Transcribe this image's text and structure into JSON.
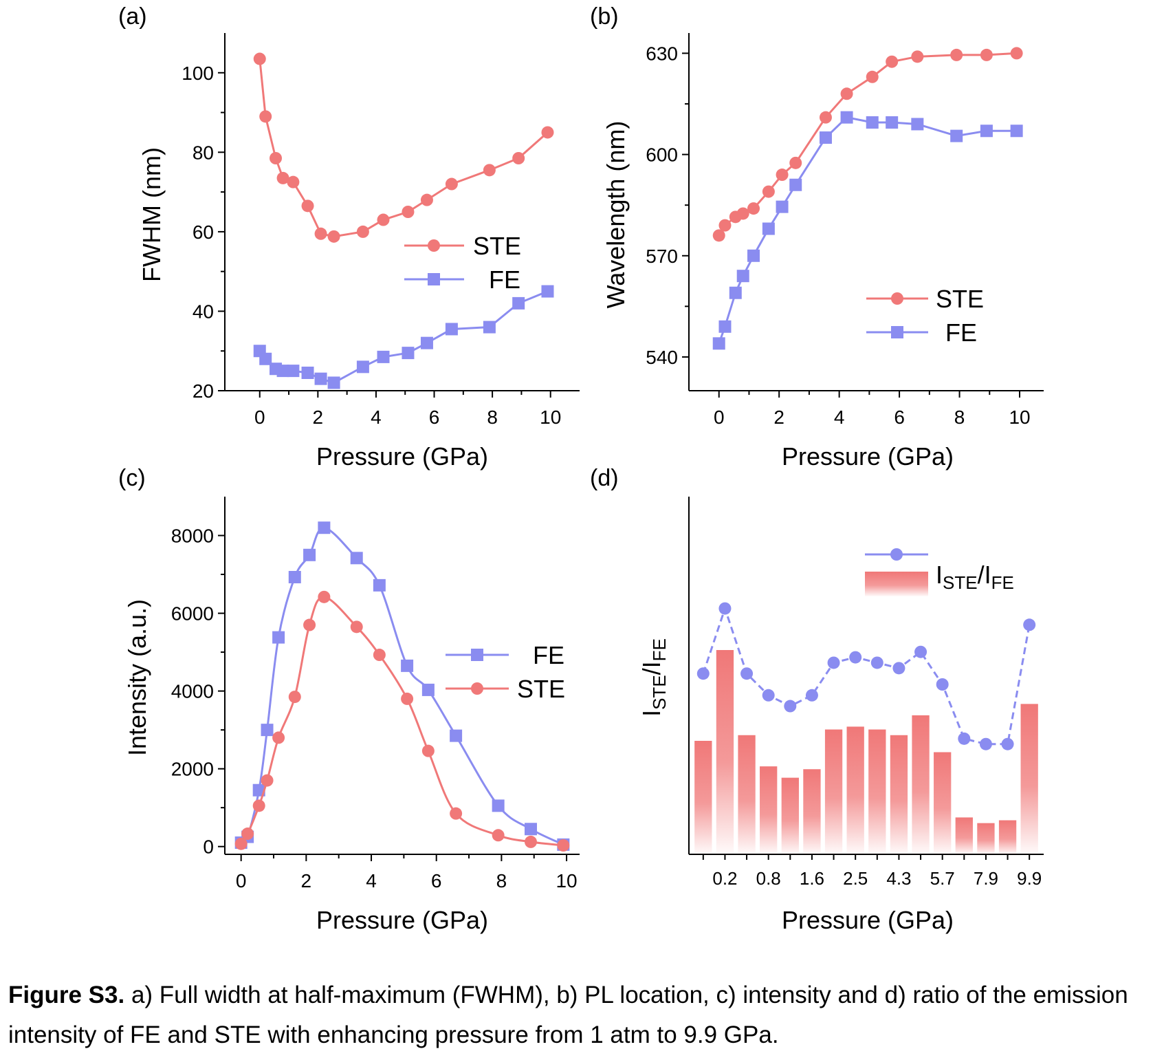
{
  "figure_caption": {
    "label": "Figure S3.",
    "text": " a) Full width at half-maximum (FWHM), b) PL location, c) intensity and d) ratio of the emission intensity of FE and STE with enhancing pressure from 1 atm to 9.9 GPa."
  },
  "colors": {
    "STE": "#f07878",
    "FE": "#8a8cf0",
    "axis": "#000000"
  },
  "chart_data": [
    {
      "panel": "(a)",
      "type": "line",
      "xlabel": "Pressure (GPa)",
      "ylabel": "FWHM (nm)",
      "xlim": [
        -1.2,
        11.0
      ],
      "ylim": [
        20,
        110
      ],
      "xticks": [
        "0",
        "2",
        "4",
        "6",
        "8",
        "10"
      ],
      "yticks": [
        "20",
        "40",
        "60",
        "80",
        "100"
      ],
      "legend": "center-right",
      "series": [
        {
          "name": "STE",
          "marker": "circle",
          "x": [
            0,
            0.2,
            0.55,
            0.8,
            1.15,
            1.65,
            2.1,
            2.55,
            3.55,
            4.25,
            5.1,
            5.75,
            6.6,
            7.9,
            8.9,
            9.9
          ],
          "y": [
            103.5,
            89,
            78.5,
            73.5,
            72.5,
            66.5,
            59.5,
            58.8,
            60,
            63,
            65,
            68,
            72,
            75.5,
            78.5,
            85
          ]
        },
        {
          "name": "FE",
          "marker": "square",
          "x": [
            0,
            0.2,
            0.55,
            0.8,
            1.15,
            1.65,
            2.1,
            2.55,
            3.55,
            4.25,
            5.1,
            5.75,
            6.6,
            7.9,
            8.9,
            9.9
          ],
          "y": [
            30,
            28,
            25.5,
            25,
            25,
            24.5,
            23,
            22,
            26,
            28.5,
            29.5,
            32,
            35.5,
            36,
            42,
            45
          ]
        }
      ]
    },
    {
      "panel": "(b)",
      "type": "line",
      "xlabel": "Pressure (GPa)",
      "ylabel": "Wavelength (nm)",
      "xlim": [
        -1.0,
        10.8
      ],
      "ylim": [
        530,
        636
      ],
      "xticks": [
        "0",
        "2",
        "4",
        "6",
        "8",
        "10"
      ],
      "yticks": [
        "540",
        "570",
        "600",
        "630"
      ],
      "legend": "lower-right",
      "series": [
        {
          "name": "STE",
          "marker": "circle",
          "x": [
            0,
            0.2,
            0.55,
            0.8,
            1.15,
            1.65,
            2.1,
            2.55,
            3.55,
            4.25,
            5.1,
            5.75,
            6.6,
            7.9,
            8.9,
            9.9
          ],
          "y": [
            576,
            579,
            581.5,
            582.5,
            584,
            589,
            594,
            597.5,
            611,
            618,
            623,
            627.5,
            629,
            629.5,
            629.5,
            630
          ]
        },
        {
          "name": "FE",
          "marker": "square",
          "x": [
            0,
            0.2,
            0.55,
            0.8,
            1.15,
            1.65,
            2.1,
            2.55,
            3.55,
            4.25,
            5.1,
            5.75,
            6.6,
            7.9,
            8.9,
            9.9
          ],
          "y": [
            544,
            549,
            559,
            564,
            570,
            578,
            584.5,
            591,
            605,
            611,
            609.5,
            609.5,
            609,
            605.5,
            607,
            607
          ]
        }
      ]
    },
    {
      "panel": "(c)",
      "type": "line",
      "xlabel": "Pressure (GPa)",
      "ylabel": "Intensity (a.u.)",
      "xlim": [
        -0.5,
        10.4
      ],
      "ylim": [
        -200,
        9000
      ],
      "xticks": [
        "0",
        "2",
        "4",
        "6",
        "8",
        "10"
      ],
      "yticks": [
        "0",
        "2000",
        "4000",
        "6000",
        "8000"
      ],
      "legend": "center-right",
      "series": [
        {
          "name": "FE",
          "marker": "square",
          "x": [
            0,
            0.2,
            0.55,
            0.8,
            1.15,
            1.65,
            2.1,
            2.55,
            3.55,
            4.25,
            5.1,
            5.75,
            6.6,
            7.9,
            8.9,
            9.9
          ],
          "y": [
            100,
            250,
            1450,
            3000,
            5380,
            6930,
            7500,
            8200,
            7420,
            6720,
            4650,
            4030,
            2850,
            1050,
            450,
            50
          ]
        },
        {
          "name": "STE",
          "marker": "circle",
          "x": [
            0,
            0.2,
            0.55,
            0.8,
            1.15,
            1.65,
            2.1,
            2.55,
            3.55,
            4.25,
            5.1,
            5.75,
            6.6,
            7.9,
            8.9,
            9.9
          ],
          "y": [
            70,
            330,
            1050,
            1700,
            2800,
            3850,
            5700,
            6420,
            5650,
            4930,
            3800,
            2460,
            850,
            290,
            120,
            30
          ]
        }
      ]
    },
    {
      "panel": "(d)",
      "type": "bar",
      "xlabel": "Pressure (GPa)",
      "ylabel_main": "I",
      "ylabel_sub1": "STE",
      "ylabel_slash": "/I",
      "ylabel_sub2": "FE",
      "legend": "top-right",
      "legend_label_main": "I",
      "legend_label_sub1": "STE",
      "legend_label_slash": "/I",
      "legend_label_sub2": "FE",
      "xtick_labels": [
        "",
        "0.2",
        "",
        "0.8",
        "",
        "1.6",
        "",
        "2.5",
        "",
        "4.3",
        "",
        "5.7",
        "",
        "7.9",
        "",
        "9.9"
      ],
      "ratio_line": [
        2.0,
        2.6,
        2.0,
        1.8,
        1.7,
        1.8,
        2.1,
        2.15,
        2.1,
        2.05,
        2.2,
        1.9,
        1.4,
        1.35,
        1.35,
        2.45
      ],
      "ratio_bars": [
        2.0,
        3.6,
        2.1,
        1.55,
        1.35,
        1.5,
        2.2,
        2.25,
        2.2,
        2.1,
        2.45,
        1.8,
        0.65,
        0.55,
        0.6,
        2.65
      ]
    }
  ]
}
